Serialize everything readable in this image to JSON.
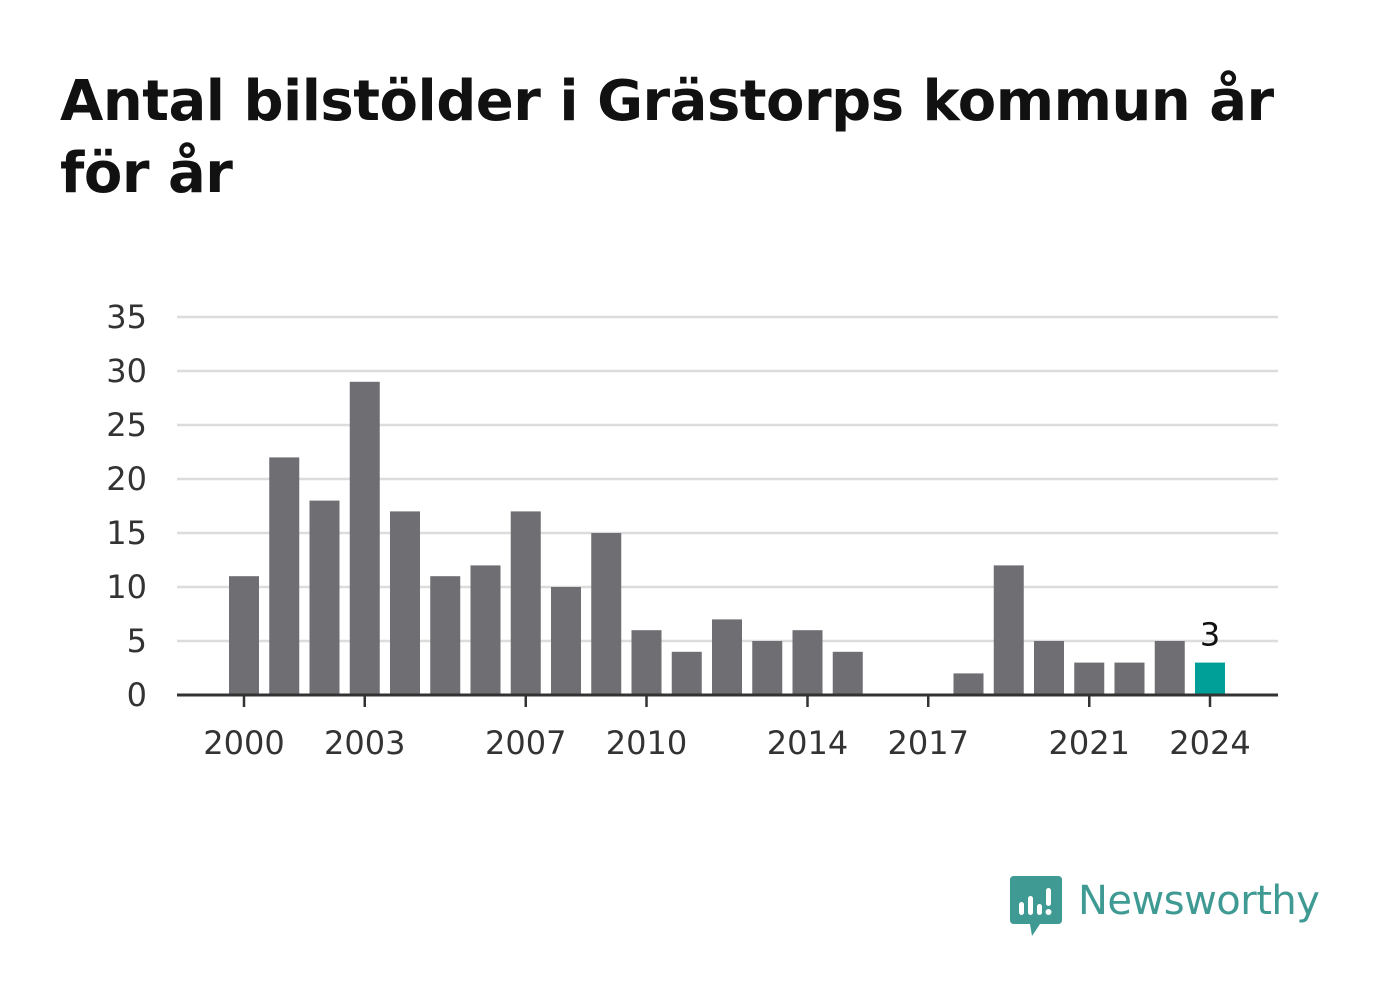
{
  "title": "Antal bilstölder i Grästorps kommun år för år",
  "brand": {
    "name": "Newsworthy",
    "icon": "newsworthy-logo-icon",
    "color": "#3e9a93"
  },
  "colors": {
    "bar": "#6e6e73",
    "highlight": "#00a098",
    "grid": "#dcdcdc",
    "axis": "#333333"
  },
  "chart_data": {
    "type": "bar",
    "title": "Antal bilstölder i Grästorps kommun år för år",
    "xlabel": "",
    "ylabel": "",
    "ylim": [
      0,
      35
    ],
    "yticks": [
      0,
      5,
      10,
      15,
      20,
      25,
      30,
      35
    ],
    "grid": true,
    "categories": [
      2000,
      2001,
      2002,
      2003,
      2004,
      2005,
      2006,
      2007,
      2008,
      2009,
      2010,
      2011,
      2012,
      2013,
      2014,
      2015,
      2016,
      2017,
      2018,
      2019,
      2020,
      2021,
      2022,
      2023,
      2024
    ],
    "values": [
      11,
      22,
      18,
      29,
      17,
      11,
      12,
      17,
      10,
      15,
      6,
      4,
      7,
      5,
      6,
      4,
      0,
      0,
      2,
      12,
      5,
      3,
      3,
      5,
      3
    ],
    "xtick_labels": [
      "2000",
      "2003",
      "2007",
      "2010",
      "2014",
      "2017",
      "2021",
      "2024"
    ],
    "highlight": {
      "category": 2024,
      "label": "3"
    }
  }
}
